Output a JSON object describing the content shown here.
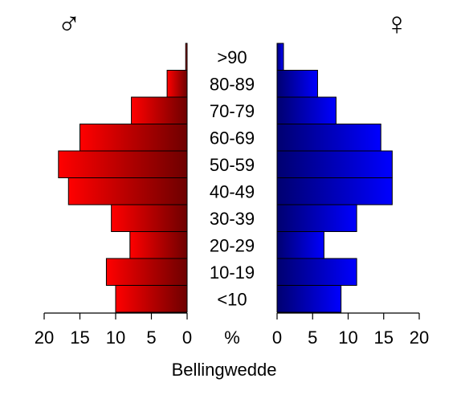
{
  "chart_data": {
    "type": "bar",
    "subtype": "population-pyramid",
    "xlabel": "Bellingwedde",
    "unit_label": "%",
    "categories": [
      "<10",
      "10-19",
      "20-29",
      "30-39",
      "40-49",
      "50-59",
      "60-69",
      "70-79",
      "80-89",
      ">90"
    ],
    "series": [
      {
        "name": "male",
        "symbol": "♂",
        "side": "left",
        "values": [
          10.0,
          11.3,
          8.0,
          10.6,
          16.6,
          18.0,
          15.0,
          7.8,
          2.8,
          0.2
        ]
      },
      {
        "name": "female",
        "symbol": "♀",
        "side": "right",
        "values": [
          9.0,
          11.2,
          6.6,
          11.2,
          16.2,
          16.2,
          14.6,
          8.3,
          5.7,
          0.9
        ]
      }
    ],
    "xlim": [
      0,
      20
    ],
    "ticks": [
      0,
      5,
      10,
      15,
      20
    ],
    "grid": false,
    "colors": {
      "male_light": "#ff0000",
      "male_dark": "#6e0000",
      "female_light": "#0000ff",
      "female_dark": "#000070",
      "outline": "#000000"
    }
  }
}
